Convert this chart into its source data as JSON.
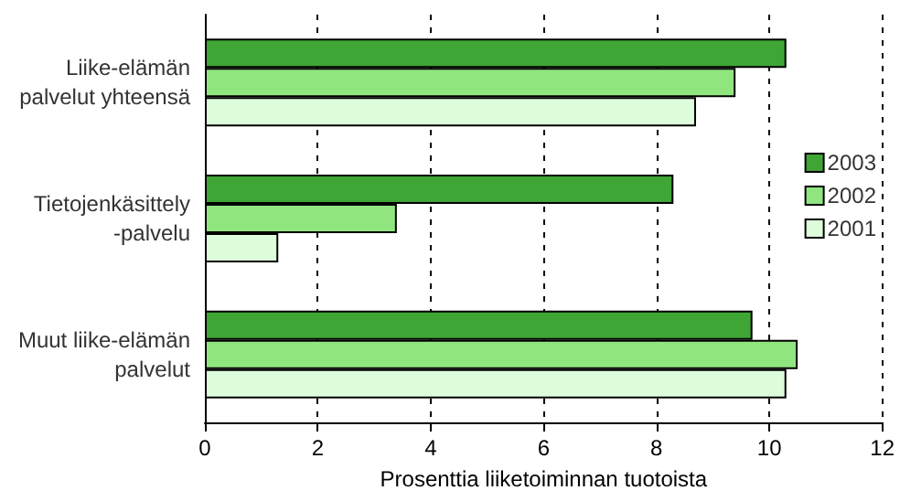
{
  "chart_data": {
    "type": "bar",
    "orientation": "horizontal",
    "xlabel": "Prosenttia liiketoiminnan tuotoista",
    "categories": [
      "Liike-elämän\npalvelut yhteensä",
      "Tietojenkäsittely\n-palvelu",
      "Muut liike-elämän\npalvelut"
    ],
    "series": [
      {
        "name": "2003",
        "color": "#3fa535",
        "values": [
          10.3,
          8.3,
          9.7
        ]
      },
      {
        "name": "2002",
        "color": "#91e57f",
        "values": [
          9.4,
          3.4,
          10.5
        ]
      },
      {
        "name": "2001",
        "color": "#ddfddb",
        "values": [
          8.7,
          1.3,
          10.3
        ]
      }
    ],
    "xlim": [
      0,
      12
    ],
    "xticks": [
      0,
      2,
      4,
      6,
      8,
      10,
      12
    ],
    "grid": "x",
    "legend": "right"
  }
}
